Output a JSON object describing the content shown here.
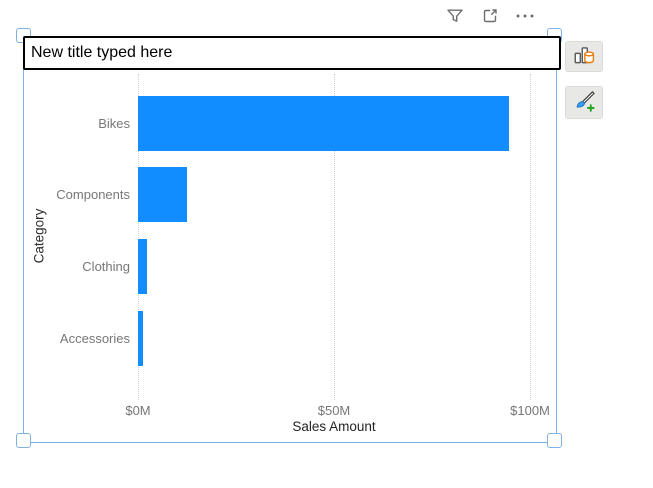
{
  "toolbar": {
    "icons": [
      "filter-icon",
      "focus-mode-icon",
      "more-options-icon"
    ]
  },
  "title_box": {
    "value": "New title typed here"
  },
  "side_buttons": {
    "icons": [
      "build-visual-icon",
      "format-visual-icon"
    ]
  },
  "chart_data": {
    "type": "bar",
    "orientation": "horizontal",
    "categories": [
      "Bikes",
      "Components",
      "Clothing",
      "Accessories"
    ],
    "values": [
      94.6,
      12.6,
      2.2,
      1.3
    ],
    "value_unit": "$M",
    "x_ticks": [
      {
        "label": "$0M",
        "value": 0
      },
      {
        "label": "$50M",
        "value": 50
      },
      {
        "label": "$100M",
        "value": 100
      }
    ],
    "xlabel": "Sales Amount",
    "ylabel": "Category",
    "xlim": [
      0,
      100
    ],
    "grid": "dotted-vertical",
    "legend": "none"
  },
  "colors": {
    "bar": "#118DFF",
    "selection": "#7fb2e3",
    "axis_text": "#777777",
    "axis_title": "#252423",
    "icon_gray": "#6e6e6e",
    "cylinder_orange": "#e87d0d",
    "plus_green": "#18a318"
  }
}
